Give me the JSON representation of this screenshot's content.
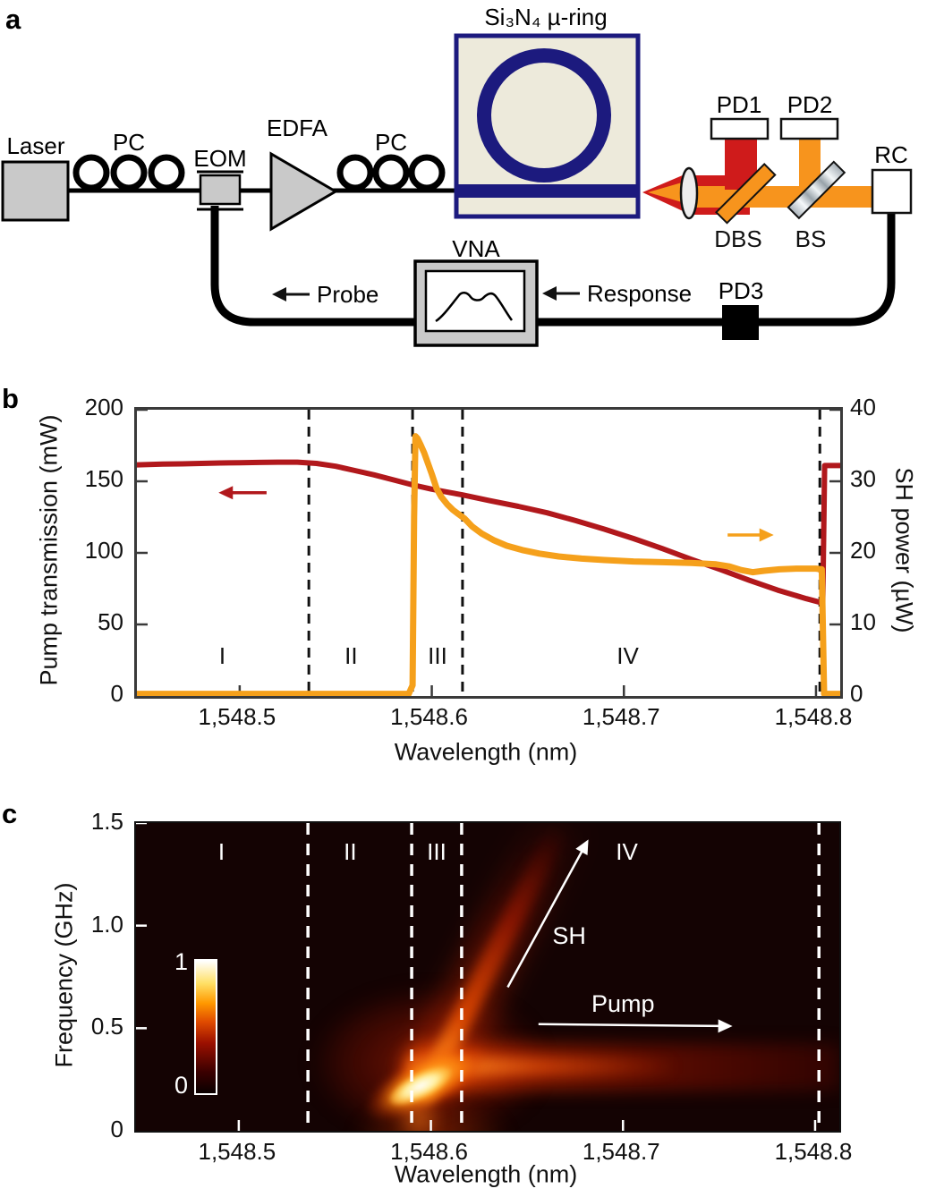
{
  "figure": {
    "panel_labels": {
      "a": "a",
      "b": "b",
      "c": "c"
    },
    "colors": {
      "pump_red": "#b1181c",
      "sh_orange": "#f5a01b",
      "chip_navy": "#1c1a7e",
      "component_gray": "#c9c9c9",
      "beam_orange": "#f7941d",
      "beam_red": "#cf1b1b"
    },
    "panel_a": {
      "components": {
        "laser": "Laser",
        "pc1": "PC",
        "eom": "EOM",
        "edfa": "EDFA",
        "pc2": "PC",
        "chip": "Si₃N₄ µ-ring",
        "pd1": "PD1",
        "pd2": "PD2",
        "rc": "RC",
        "dbs": "DBS",
        "bs": "BS",
        "vna": "VNA",
        "pd3": "PD3"
      },
      "flow_labels": {
        "probe": "Probe",
        "response": "Response"
      }
    }
  },
  "chart_data": [
    {
      "id": "panel_b",
      "type": "line",
      "xlabel": "Wavelength (nm)",
      "ylabel_left": "Pump transmission (mW)",
      "ylabel_right": "SH power (µW)",
      "xlim": [
        1548.4465,
        1548.8126
      ],
      "ylim_left": [
        0,
        200
      ],
      "ylim_right": [
        0,
        40
      ],
      "xticks": [
        1548.5,
        1548.6,
        1548.7,
        1548.8
      ],
      "xtick_labels": [
        "1,548.5",
        "1,548.6",
        "1,548.7",
        "1,548.8"
      ],
      "yticks_left": [
        0,
        50,
        100,
        150,
        200
      ],
      "ytick_labels_left": [
        "0",
        "50",
        "100",
        "150",
        "200"
      ],
      "yticks_right": [
        0,
        10,
        20,
        30,
        40
      ],
      "ytick_labels_right": [
        "0",
        "10",
        "20",
        "30",
        "40"
      ],
      "region_boundaries": [
        1548.536,
        1548.59,
        1548.616,
        1548.802
      ],
      "regions": [
        {
          "label": "I",
          "x": 1548.491,
          "y": 28
        },
        {
          "label": "II",
          "x": 1548.558,
          "y": 28
        },
        {
          "label": "III",
          "x": 1548.603,
          "y": 28
        },
        {
          "label": "IV",
          "x": 1548.702,
          "y": 28
        }
      ],
      "arrows": [
        {
          "name": "pump-left-arrow",
          "color": "#b1181c",
          "axis": "left",
          "y": 142,
          "x_from": 1548.514,
          "x_to": 1548.489
        },
        {
          "name": "sh-right-arrow",
          "color": "#f5a01b",
          "axis": "right",
          "y": 22.5,
          "x_from": 1548.754,
          "x_to": 1548.778
        }
      ],
      "series": [
        {
          "name": "Pump transmission",
          "axis": "left",
          "color": "#b1181c",
          "width": 6,
          "points": [
            [
              1548.4465,
              161.5
            ],
            [
              1548.46,
              162
            ],
            [
              1548.47,
              162.2
            ],
            [
              1548.48,
              162.5
            ],
            [
              1548.49,
              162.8
            ],
            [
              1548.5,
              163
            ],
            [
              1548.51,
              163.2
            ],
            [
              1548.52,
              163.4
            ],
            [
              1548.53,
              163.4
            ],
            [
              1548.54,
              162.5
            ],
            [
              1548.55,
              160.5
            ],
            [
              1548.56,
              157.5
            ],
            [
              1548.57,
              154.5
            ],
            [
              1548.58,
              151
            ],
            [
              1548.59,
              147.5
            ],
            [
              1548.6,
              144.5
            ],
            [
              1548.61,
              142
            ],
            [
              1548.616,
              140.5
            ],
            [
              1548.63,
              136.5
            ],
            [
              1548.645,
              132.5
            ],
            [
              1548.66,
              128
            ],
            [
              1548.675,
              122.5
            ],
            [
              1548.69,
              116.5
            ],
            [
              1548.705,
              110
            ],
            [
              1548.72,
              103
            ],
            [
              1548.735,
              95.5
            ],
            [
              1548.75,
              88.5
            ],
            [
              1548.765,
              81
            ],
            [
              1548.78,
              74
            ],
            [
              1548.795,
              68
            ],
            [
              1548.802,
              65.5
            ],
            [
              1548.8035,
              65
            ],
            [
              1548.8045,
              161
            ],
            [
              1548.8126,
              161
            ]
          ]
        },
        {
          "name": "SH power",
          "axis": "right",
          "color": "#f5a01b",
          "width": 7,
          "points": [
            [
              1548.4465,
              0.3
            ],
            [
              1548.588,
              0.3
            ],
            [
              1548.59,
              1.5
            ],
            [
              1548.5908,
              25
            ],
            [
              1548.5915,
              36.3
            ],
            [
              1548.5925,
              36
            ],
            [
              1548.594,
              35.2
            ],
            [
              1548.596,
              34
            ],
            [
              1548.598,
              32.5
            ],
            [
              1548.6,
              31
            ],
            [
              1548.6025,
              29
            ],
            [
              1548.605,
              27.8
            ],
            [
              1548.608,
              26.8
            ],
            [
              1548.611,
              26
            ],
            [
              1548.614,
              25.4
            ],
            [
              1548.617,
              24.8
            ],
            [
              1548.621,
              23.7
            ],
            [
              1548.626,
              22.7
            ],
            [
              1548.632,
              21.8
            ],
            [
              1548.639,
              21
            ],
            [
              1548.647,
              20.4
            ],
            [
              1548.656,
              19.9
            ],
            [
              1548.666,
              19.5
            ],
            [
              1548.678,
              19.2
            ],
            [
              1548.69,
              19
            ],
            [
              1548.705,
              18.8
            ],
            [
              1548.72,
              18.7
            ],
            [
              1548.735,
              18.6
            ],
            [
              1548.748,
              18.4
            ],
            [
              1548.755,
              18.1
            ],
            [
              1548.761,
              17.6
            ],
            [
              1548.767,
              17.3
            ],
            [
              1548.773,
              17.5
            ],
            [
              1548.781,
              17.7
            ],
            [
              1548.79,
              17.8
            ],
            [
              1548.8,
              17.8
            ],
            [
              1548.803,
              17.7
            ],
            [
              1548.8042,
              0.3
            ],
            [
              1548.8126,
              0.3
            ]
          ]
        }
      ]
    },
    {
      "id": "panel_c",
      "type": "heatmap",
      "xlabel": "Wavelength (nm)",
      "ylabel": "Frequency (GHz)",
      "xlim": [
        1548.4465,
        1548.8126
      ],
      "ylim": [
        0,
        1.5
      ],
      "xticks": [
        1548.5,
        1548.6,
        1548.7,
        1548.8
      ],
      "xtick_labels": [
        "1,548.5",
        "1,548.6",
        "1,548.7",
        "1,548.8"
      ],
      "yticks": [
        0,
        0.5,
        1.0,
        1.5
      ],
      "ytick_labels": [
        "0",
        "0.5",
        "1.0",
        "1.5"
      ],
      "colorbar": {
        "min_label": "0",
        "max_label": "1",
        "colormap": "hot"
      },
      "region_boundaries": [
        1548.536,
        1548.59,
        1548.616,
        1548.802
      ],
      "regions": [
        {
          "label": "I",
          "x": 1548.491,
          "f": 1.36
        },
        {
          "label": "II",
          "x": 1548.558,
          "f": 1.36
        },
        {
          "label": "III",
          "x": 1548.603,
          "f": 1.36
        },
        {
          "label": "IV",
          "x": 1548.702,
          "f": 1.36
        }
      ],
      "features": {
        "bright_spot": {
          "wavelength_nm": 1548.6,
          "frequency_ghz": 0.3,
          "intensity": 1.0
        },
        "sh_branch": {
          "label": "SH",
          "from": [
            1548.602,
            0.15
          ],
          "to": [
            1548.668,
            1.47
          ]
        },
        "pump_branch": {
          "label": "Pump",
          "frequency_ghz": 0.29,
          "from_wavelength_nm": 1548.6,
          "to_wavelength_nm": 1548.81
        }
      },
      "annotations": {
        "sh_label": "SH",
        "pump_label": "Pump",
        "sh_label_pos": [
          1548.672,
          0.95
        ],
        "pump_label_pos": [
          1548.7,
          0.62
        ],
        "sh_arrow": {
          "from": [
            1548.64,
            0.7
          ],
          "to": [
            1548.682,
            1.42
          ]
        },
        "pump_arrow": {
          "from": [
            1548.656,
            0.52
          ],
          "to": [
            1548.757,
            0.51
          ]
        }
      }
    }
  ]
}
